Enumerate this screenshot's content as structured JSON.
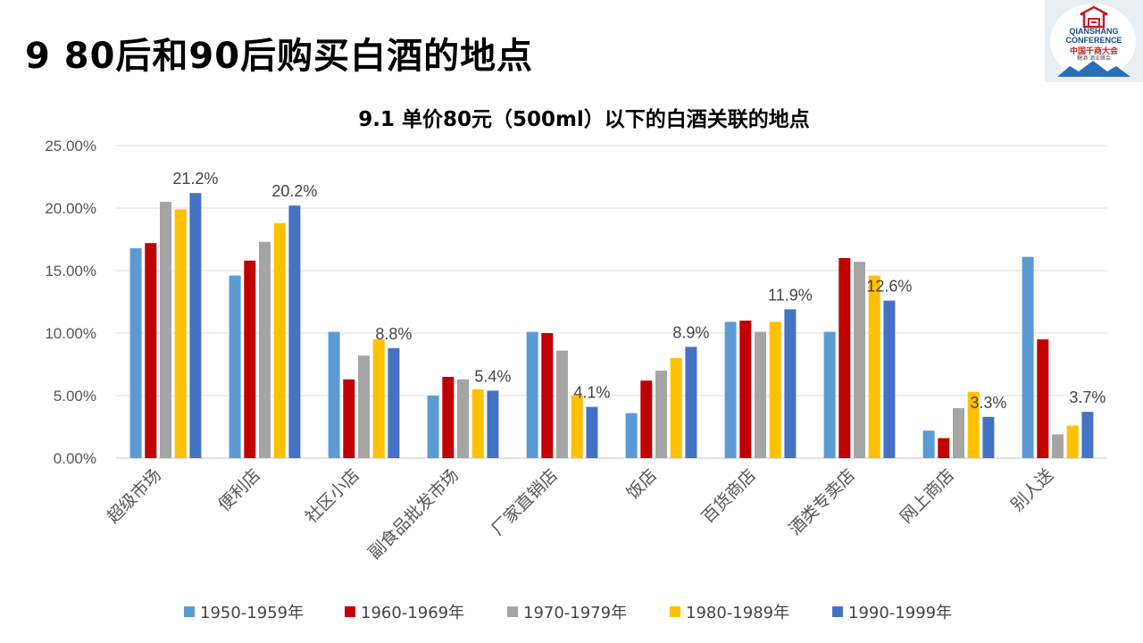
{
  "page": {
    "title": "9 80后和90后购买白酒的地点"
  },
  "logo": {
    "line1": "QIANSHANG",
    "line2": "CONFERENCE",
    "line3": "中国千商大会",
    "line4": "糖酒 酒业峰会",
    "brand_color": "#1a4a8a",
    "accent_color": "#c02020"
  },
  "chart_data": {
    "type": "bar",
    "title": "9.1 单价80元（500ml）以下的白酒关联的地点",
    "categories": [
      "超级市场",
      "便利店",
      "社区小店",
      "副食品批发市场",
      "厂家直销店",
      "饭店",
      "百货商店",
      "酒类专卖店",
      "网上商店",
      "别人送"
    ],
    "series": [
      {
        "name": "1950-1959年",
        "color": "#5b9bd5",
        "values": [
          16.8,
          14.6,
          10.1,
          5.0,
          10.1,
          3.6,
          10.9,
          10.1,
          2.2,
          16.1
        ]
      },
      {
        "name": "1960-1969年",
        "color": "#c00000",
        "values": [
          17.2,
          15.8,
          6.3,
          6.5,
          10.0,
          6.2,
          11.0,
          16.0,
          1.6,
          9.5
        ]
      },
      {
        "name": "1970-1979年",
        "color": "#a5a5a5",
        "values": [
          20.5,
          17.3,
          8.2,
          6.3,
          8.6,
          7.0,
          10.1,
          15.7,
          4.0,
          1.9
        ]
      },
      {
        "name": "1980-1989年",
        "color": "#ffc000",
        "values": [
          19.9,
          18.8,
          9.5,
          5.5,
          5.0,
          8.0,
          10.9,
          14.6,
          5.3,
          2.6
        ]
      },
      {
        "name": "1990-1999年",
        "color": "#4472c4",
        "values": [
          21.2,
          20.2,
          8.8,
          5.4,
          4.1,
          8.9,
          11.9,
          12.6,
          3.3,
          3.7
        ]
      }
    ],
    "data_labels": [
      "21.2%",
      "20.2%",
      "8.8%",
      "5.4%",
      "4.1%",
      "8.9%",
      "11.9%",
      "12.6%",
      "3.3%",
      "3.7%"
    ],
    "data_label_series": "1990-1999年",
    "ylim": [
      0,
      25
    ],
    "y_ticks": [
      0,
      5,
      10,
      15,
      20,
      25
    ],
    "y_tick_labels": [
      "0.00%",
      "5.00%",
      "10.00%",
      "15.00%",
      "20.00%",
      "25.00%"
    ],
    "xlabel": "",
    "ylabel": "",
    "grid": true,
    "legend_position": "bottom"
  }
}
